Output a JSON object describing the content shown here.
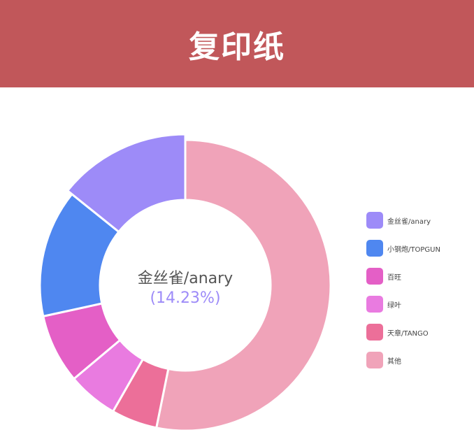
{
  "header": {
    "title": "复印纸"
  },
  "chart_data": {
    "type": "pie",
    "donut": true,
    "title": "复印纸",
    "legend_position": "right",
    "highlighted": "金丝雀/anary",
    "center_label": {
      "name": "金丝雀/anary",
      "percent": "(14.23%)"
    },
    "slices": [
      {
        "name": "其他",
        "value": 53.2,
        "color": "#f0a3b9"
      },
      {
        "name": "天章/TANGO",
        "value": 5.1,
        "color": "#ec6f99"
      },
      {
        "name": "绿叶",
        "value": 5.6,
        "color": "#e97be0"
      },
      {
        "name": "百旺",
        "value": 7.7,
        "color": "#e45fc6"
      },
      {
        "name": "小钢炮/TOPGUN",
        "value": 14.2,
        "color": "#4f87f0"
      },
      {
        "name": "金丝雀/anary",
        "value": 14.23,
        "color": "#9d8bf8"
      }
    ],
    "legend_order": [
      "金丝雀/anary",
      "小钢炮/TOPGUN",
      "百旺",
      "绿叶",
      "天章/TANGO",
      "其他"
    ]
  }
}
